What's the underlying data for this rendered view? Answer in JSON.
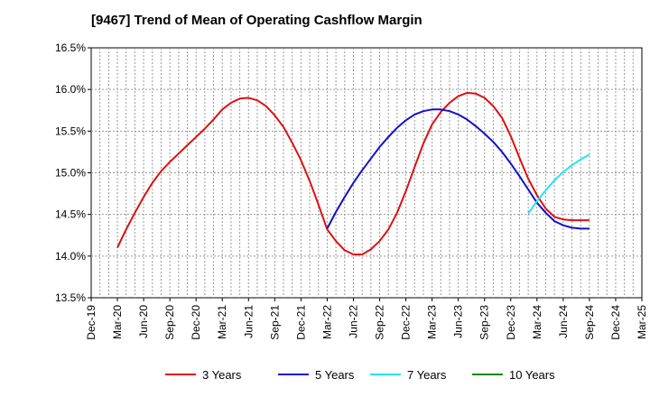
{
  "chart_data": {
    "type": "line",
    "title": "[9467]  Trend of Mean of Operating Cashflow Margin",
    "xlabel": "",
    "ylabel": "",
    "x_ticks": [
      "Dec-19",
      "Mar-20",
      "Jun-20",
      "Sep-20",
      "Dec-20",
      "Mar-21",
      "Jun-21",
      "Sep-21",
      "Dec-21",
      "Mar-22",
      "Jun-22",
      "Sep-22",
      "Dec-22",
      "Mar-23",
      "Jun-23",
      "Sep-23",
      "Dec-23",
      "Mar-24",
      "Jun-24",
      "Sep-24",
      "Dec-24",
      "Mar-25"
    ],
    "y_ticks": [
      "13.5%",
      "14.0%",
      "14.5%",
      "15.0%",
      "15.5%",
      "16.0%",
      "16.5%"
    ],
    "ylim": [
      13.5,
      16.5
    ],
    "grid": true,
    "legend_position": "bottom",
    "series": [
      {
        "name": "3 Years",
        "color": "#dd1111",
        "x": [
          "Mar-20",
          "Apr-20",
          "May-20",
          "Jun-20",
          "Jul-20",
          "Aug-20",
          "Sep-20",
          "Oct-20",
          "Nov-20",
          "Dec-20",
          "Jan-21",
          "Feb-21",
          "Mar-21",
          "Apr-21",
          "May-21",
          "Jun-21",
          "Jul-21",
          "Aug-21",
          "Sep-21",
          "Oct-21",
          "Nov-21",
          "Dec-21",
          "Jan-22",
          "Feb-22",
          "Mar-22",
          "Apr-22",
          "May-22",
          "Jun-22",
          "Jul-22",
          "Aug-22",
          "Sep-22",
          "Oct-22",
          "Nov-22",
          "Dec-22",
          "Jan-23",
          "Feb-23",
          "Mar-23",
          "Apr-23",
          "May-23",
          "Jun-23",
          "Jul-23",
          "Aug-23",
          "Sep-23",
          "Oct-23",
          "Nov-23",
          "Dec-23",
          "Jan-24",
          "Feb-24",
          "Mar-24",
          "Apr-24",
          "May-24",
          "Jun-24",
          "Jul-24",
          "Aug-24",
          "Sep-24"
        ],
        "values": [
          14.1,
          14.32,
          14.52,
          14.71,
          14.88,
          15.02,
          15.13,
          15.23,
          15.33,
          15.43,
          15.53,
          15.64,
          15.76,
          15.84,
          15.89,
          15.9,
          15.87,
          15.8,
          15.69,
          15.55,
          15.36,
          15.15,
          14.9,
          14.62,
          14.32,
          14.18,
          14.07,
          14.02,
          14.02,
          14.08,
          14.18,
          14.32,
          14.52,
          14.78,
          15.07,
          15.35,
          15.58,
          15.73,
          15.84,
          15.92,
          15.96,
          15.95,
          15.9,
          15.8,
          15.66,
          15.44,
          15.18,
          14.93,
          14.73,
          14.57,
          14.47,
          14.44,
          14.43,
          14.43,
          14.43
        ],
        "note": "values sampled monthly from Mar-20 to Sep-24"
      },
      {
        "name": "5 Years",
        "color": "#1111cc",
        "x": [
          "Mar-22",
          "Apr-22",
          "May-22",
          "Jun-22",
          "Jul-22",
          "Aug-22",
          "Sep-22",
          "Oct-22",
          "Nov-22",
          "Dec-22",
          "Jan-23",
          "Feb-23",
          "Mar-23",
          "Apr-23",
          "May-23",
          "Jun-23",
          "Jul-23",
          "Aug-23",
          "Sep-23",
          "Oct-23",
          "Nov-23",
          "Dec-23",
          "Jan-24",
          "Feb-24",
          "Mar-24",
          "Apr-24",
          "May-24",
          "Jun-24",
          "Jul-24",
          "Aug-24",
          "Sep-24"
        ],
        "values": [
          14.33,
          14.53,
          14.71,
          14.88,
          15.03,
          15.17,
          15.31,
          15.43,
          15.54,
          15.63,
          15.7,
          15.74,
          15.76,
          15.76,
          15.74,
          15.7,
          15.64,
          15.56,
          15.47,
          15.37,
          15.25,
          15.11,
          14.96,
          14.8,
          14.64,
          14.52,
          14.42,
          14.37,
          14.34,
          14.33,
          14.33
        ]
      },
      {
        "name": "7 Years",
        "color": "#22e5ee",
        "x": [
          "Feb-24",
          "Mar-24",
          "Apr-24",
          "May-24",
          "Jun-24",
          "Jul-24",
          "Aug-24",
          "Sep-24"
        ],
        "values": [
          14.51,
          14.66,
          14.79,
          14.91,
          15.01,
          15.09,
          15.16,
          15.22
        ]
      },
      {
        "name": "10 Years",
        "color": "#118811",
        "x": [],
        "values": []
      }
    ]
  }
}
